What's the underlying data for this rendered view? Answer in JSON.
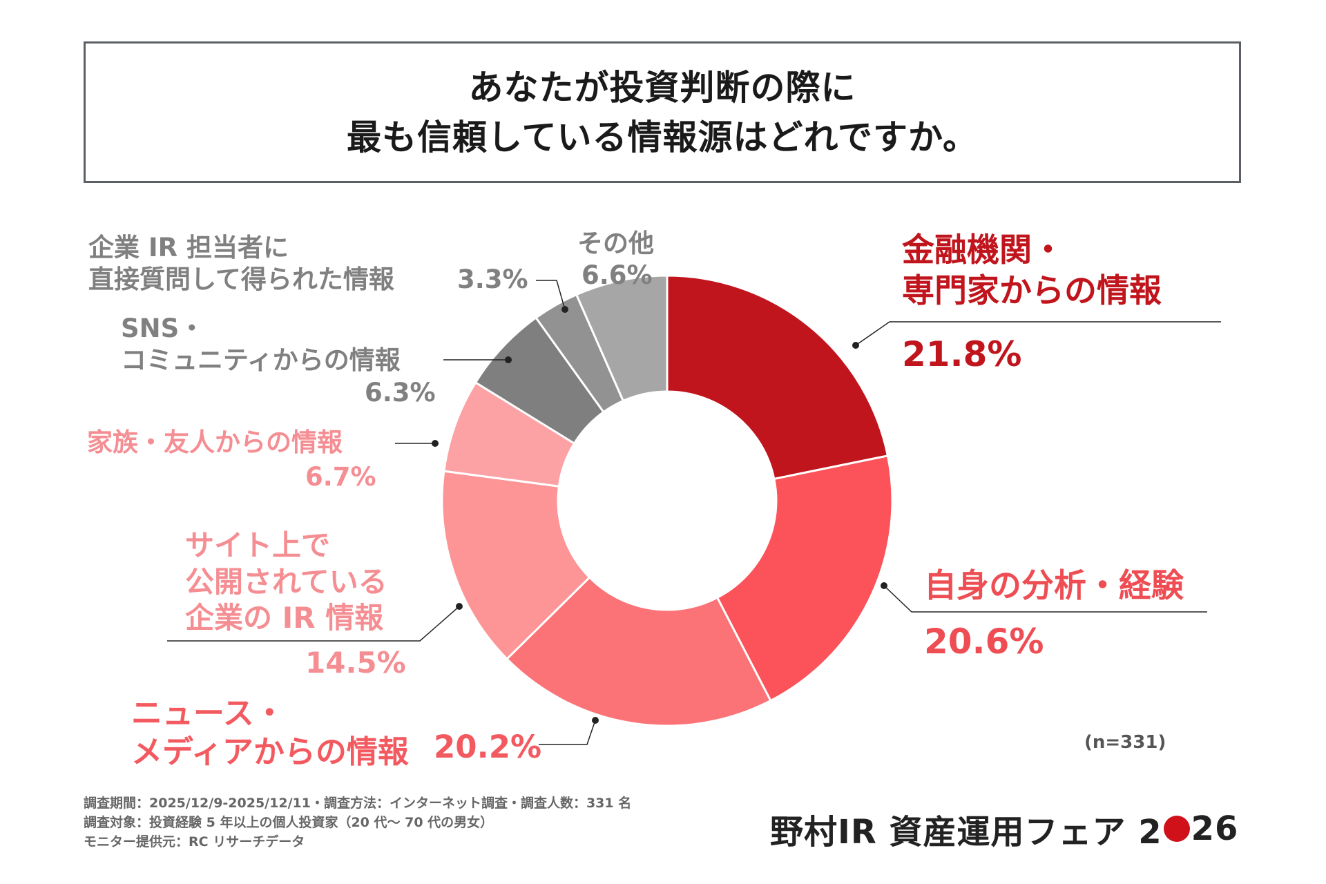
{
  "title": {
    "line1": "あなたが投資判断の際に",
    "line2": "最も信頼している情報源はどれですか。"
  },
  "chart_data": {
    "type": "pie",
    "variant": "donut",
    "title": "あなたが投資判断の際に最も信頼している情報源はどれですか。",
    "unit": "%",
    "slices": [
      {
        "label": "金融機関・専門家からの情報",
        "value": 21.8,
        "value_label": "21.8%",
        "color": "#c1151d"
      },
      {
        "label": "自身の分析・経験",
        "value": 20.6,
        "value_label": "20.6%",
        "color": "#fc5259"
      },
      {
        "label": "ニュース・メディアからの情報",
        "value": 20.2,
        "value_label": "20.2%",
        "color": "#fb7277"
      },
      {
        "label": "サイト上で公開されている企業の IR 情報",
        "value": 14.5,
        "value_label": "14.5%",
        "color": "#fd9496"
      },
      {
        "label": "家族・友人からの情報",
        "value": 6.7,
        "value_label": "6.7%",
        "color": "#fca2a5"
      },
      {
        "label": "SNS・コミュニティからの情報",
        "value": 6.3,
        "value_label": "6.3%",
        "color": "#7f7f7f"
      },
      {
        "label": "企業 IR 担当者に直接質問して得られた情報",
        "value": 3.3,
        "value_label": "3.3%",
        "color": "#929292"
      },
      {
        "label": "その他",
        "value": 6.6,
        "value_label": "6.6%",
        "color": "#a6a6a6"
      }
    ],
    "sample_size": "(n=331)"
  },
  "labels": {
    "financial": {
      "line1": "金融機関・",
      "line2": "専門家からの情報",
      "value": "21.8%"
    },
    "self": {
      "line1": "自身の分析・経験",
      "value": "20.6%"
    },
    "news": {
      "line1": "ニュース・",
      "line2": "メディアからの情報",
      "value": "20.2%"
    },
    "site": {
      "line1": "サイト上で",
      "line2": "公開されている",
      "line3": "企業の IR 情報",
      "value": "14.5%"
    },
    "family": {
      "line1": "家族・友人からの情報",
      "value": "6.7%"
    },
    "sns": {
      "line1": "SNS・",
      "line2": "コミュニティからの情報",
      "value": "6.3%"
    },
    "ir_contact": {
      "line1": "企業 IR 担当者に",
      "line2": "直接質問して得られた情報",
      "value": "3.3%"
    },
    "other": {
      "line1": "その他",
      "value": "6.6%"
    }
  },
  "footer": {
    "line1": "調査期間：2025/12/9-2025/12/11・調査方法：インターネット調査・調査人数：331 名",
    "line2": "調査対象：投資経験 5 年以上の個人投資家（20 代～ 70 代の男女）",
    "line3": "モニター提供元：RC リサーチデータ"
  },
  "brand": {
    "text1": "野村IR 資産運用フェア 2",
    "text2": "26"
  }
}
